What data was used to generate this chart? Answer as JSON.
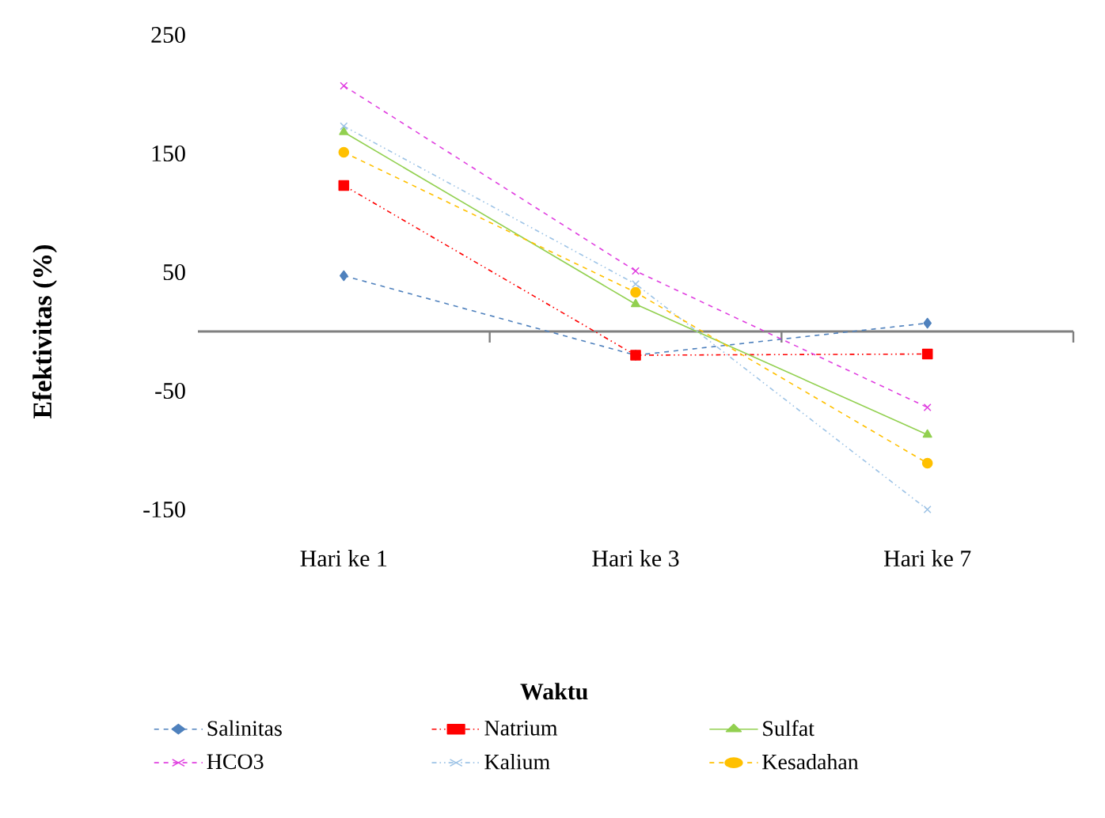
{
  "chart_data": {
    "type": "line",
    "xlabel": "Waktu",
    "ylabel": "Efektivitas (%)",
    "categories": [
      "Hari ke 1",
      "Hari ke 3",
      "Hari ke 7"
    ],
    "ylim": [
      -150,
      250
    ],
    "yticks": [
      -150,
      -50,
      50,
      150,
      250
    ],
    "grid": false,
    "legend": "bottom",
    "series": [
      {
        "name": "Salinitas",
        "color": "#4f81bd",
        "values": [
          47,
          -20,
          7
        ],
        "marker": "diamond",
        "line_style": "dashed"
      },
      {
        "name": "Natrium",
        "color": "#ff0000",
        "values": [
          123,
          -20,
          -19
        ],
        "marker": "square",
        "line_style": "dotted"
      },
      {
        "name": "Sulfat",
        "color": "#92d050",
        "values": [
          168,
          23,
          -87
        ],
        "marker": "triangle",
        "line_style": "solid"
      },
      {
        "name": "HCO3",
        "color": "#e040e0",
        "values": [
          207,
          51,
          -64
        ],
        "marker": "cross",
        "line_style": "dashed"
      },
      {
        "name": "Kalium",
        "color": "#9dc3e6",
        "values": [
          173,
          40,
          -150
        ],
        "marker": "cross",
        "line_style": "dotted"
      },
      {
        "name": "Kesadahan",
        "color": "#ffc000",
        "values": [
          151,
          33,
          -111
        ],
        "marker": "circle",
        "line_style": "dashed"
      }
    ]
  }
}
